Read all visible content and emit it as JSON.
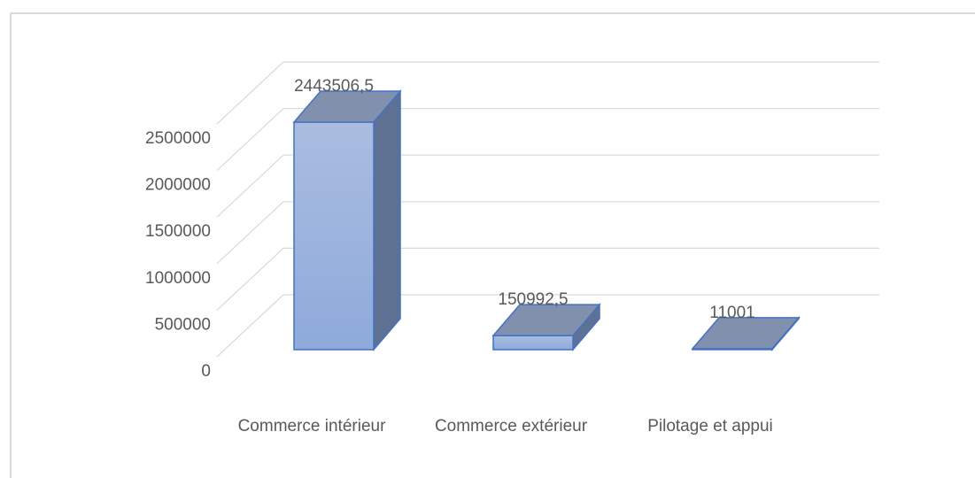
{
  "chart_data": {
    "type": "bar",
    "categories": [
      "Commerce intérieur",
      "Commerce extérieur",
      "Pilotage et appui"
    ],
    "values": [
      2443506.5,
      150992.5,
      11001
    ],
    "value_labels": [
      "2443506,5",
      "150992,5",
      "11001"
    ],
    "color": "#8eaadb",
    "ylim": [
      0,
      2500000
    ],
    "yticks": [
      0,
      500000,
      1000000,
      1500000,
      2000000,
      2500000
    ],
    "grid": true
  }
}
